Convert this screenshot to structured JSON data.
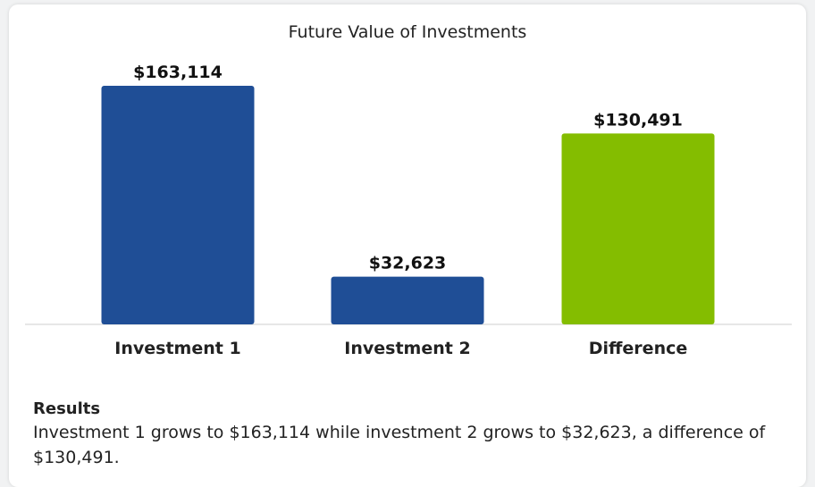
{
  "chart_data": {
    "type": "bar",
    "title": "Future Value of Investments",
    "categories": [
      "Investment 1",
      "Investment 2",
      "Difference"
    ],
    "values": [
      163114,
      32623,
      130491
    ],
    "value_labels": [
      "$163,114",
      "$32,623",
      "$130,491"
    ],
    "colors": [
      "#1f4e96",
      "#1f4e96",
      "#84bd00"
    ],
    "ylim": [
      0,
      163114
    ],
    "grid": false
  },
  "results": {
    "heading": "Results",
    "text": "Investment 1 grows to $163,114 while investment 2 grows to $32,623, a difference of $130,491."
  }
}
